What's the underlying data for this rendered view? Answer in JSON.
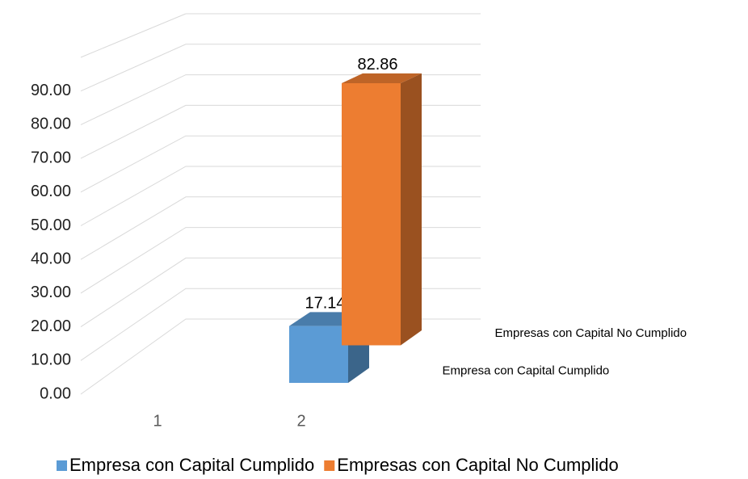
{
  "chart_data": {
    "type": "bar3d",
    "categories": [
      "1",
      "2"
    ],
    "series": [
      {
        "name": "Empresa con Capital Cumplido",
        "color": "#5b9bd5",
        "values": [
          null,
          17.14
        ]
      },
      {
        "name": "Empresas con Capital No Cumplido",
        "color": "#ed7d31",
        "values": [
          null,
          82.86
        ]
      }
    ],
    "ylim": [
      0,
      100
    ],
    "yticks": [
      {
        "value": 0,
        "label": "0.00"
      },
      {
        "value": 10,
        "label": "10.00"
      },
      {
        "value": 20,
        "label": "20.00"
      },
      {
        "value": 30,
        "label": "30.00"
      },
      {
        "value": 40,
        "label": "40.00"
      },
      {
        "value": 50,
        "label": "50.00"
      },
      {
        "value": 60,
        "label": "60.00"
      },
      {
        "value": 70,
        "label": "70.00"
      },
      {
        "value": 80,
        "label": "80.00"
      },
      {
        "value": 90,
        "label": "90.00"
      }
    ],
    "grid": true,
    "legend": "bottom"
  }
}
